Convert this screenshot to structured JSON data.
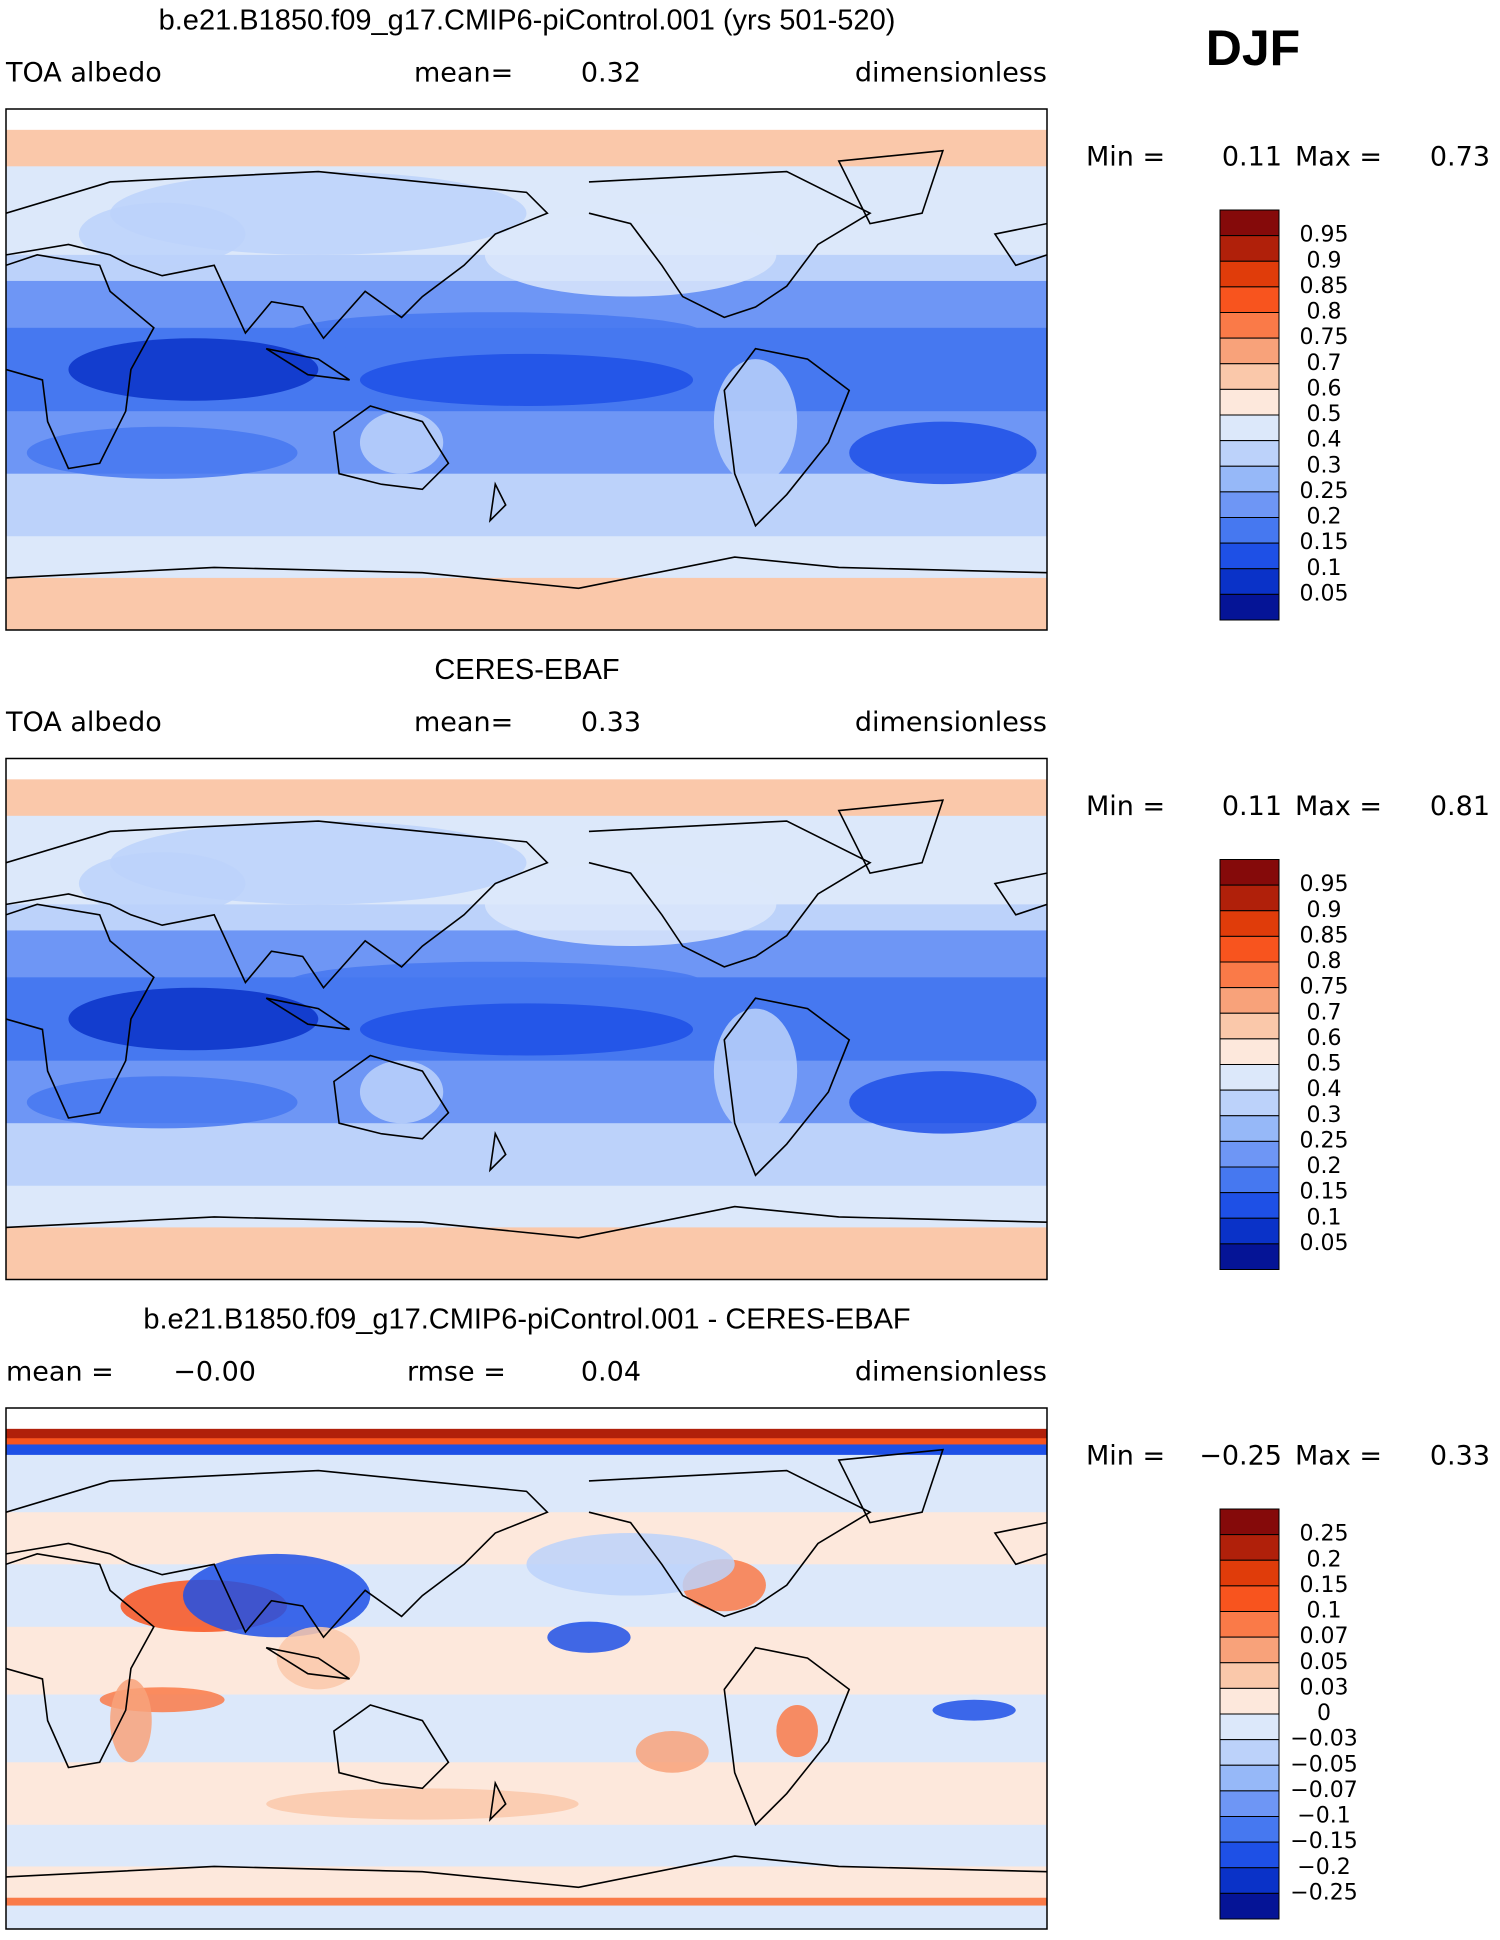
{
  "season": "DJF",
  "panels": [
    {
      "title": "b.e21.B1850.f09_g17.CMIP6-piControl.001 (yrs 501-520)",
      "left": "TOA albedo",
      "center": "mean=",
      "center_value": "0.32",
      "right": "dimensionless",
      "min_label": "Min =",
      "min": "0.11",
      "max_label": "Max =",
      "max": "0.73",
      "colorbar_labels": [
        "0.95",
        "0.9",
        "0.85",
        "0.8",
        "0.75",
        "0.7",
        "0.6",
        "0.5",
        "0.4",
        "0.3",
        "0.25",
        "0.2",
        "0.15",
        "0.1",
        "0.05"
      ]
    },
    {
      "title": "CERES-EBAF",
      "left": "TOA albedo",
      "center": "mean=",
      "center_value": "0.33",
      "right": "dimensionless",
      "min_label": "Min =",
      "min": "0.11",
      "max_label": "Max =",
      "max": "0.81",
      "colorbar_labels": [
        "0.95",
        "0.9",
        "0.85",
        "0.8",
        "0.75",
        "0.7",
        "0.6",
        "0.5",
        "0.4",
        "0.3",
        "0.25",
        "0.2",
        "0.15",
        "0.1",
        "0.05"
      ]
    },
    {
      "title": "b.e21.B1850.f09_g17.CMIP6-piControl.001 - CERES-EBAF",
      "left": "mean =",
      "left_value": "−0.00",
      "center": "rmse =",
      "center_value": "0.04",
      "right": "dimensionless",
      "min_label": "Min =",
      "min": "−0.25",
      "max_label": "Max =",
      "max": "0.33",
      "colorbar_labels": [
        "0.25",
        "0.2",
        "0.15",
        "0.1",
        "0.07",
        "0.05",
        "0.03",
        "0",
        "−0.03",
        "−0.05",
        "−0.07",
        "−0.1",
        "−0.15",
        "−0.2",
        "−0.25"
      ]
    }
  ],
  "colors": [
    "#850a0a",
    "#b0200a",
    "#e03c0a",
    "#f8541e",
    "#fa7a48",
    "#f8a27a",
    "#fac8aa",
    "#fde8dc",
    "#dce8fa",
    "#bcd2fa",
    "#96b8f8",
    "#6e96f5",
    "#4678f0",
    "#1e50e6",
    "#0a32c8",
    "#051496"
  ]
}
